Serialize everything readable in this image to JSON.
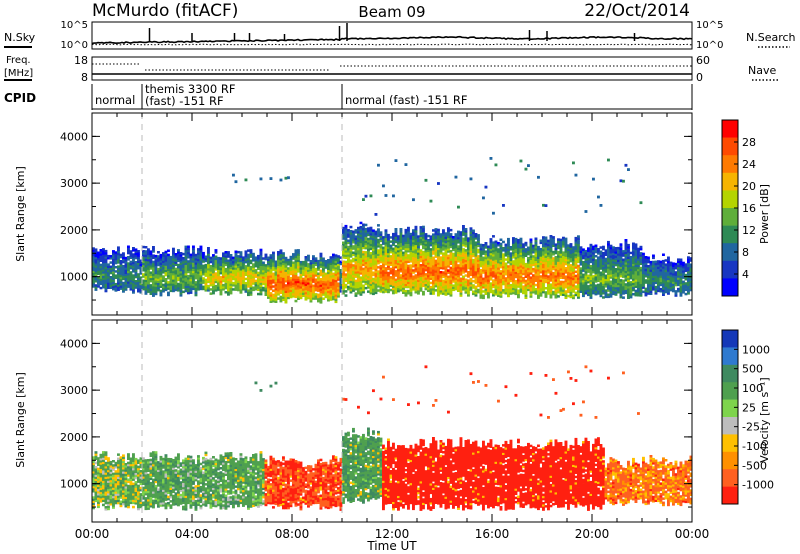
{
  "header": {
    "site": "McMurdo (fitACF)",
    "beam": "Beam 09",
    "date": "22/Oct/2014"
  },
  "noise_panel": {
    "left_label": "N.Sky",
    "right_label": "N.Search",
    "left_ticks": [
      "10^5",
      "10^0"
    ],
    "right_ticks": [
      "10^5",
      "10^0"
    ]
  },
  "freq_panel": {
    "left_label_1": "Freq.",
    "left_label_2": "[MHz]",
    "left_ticks": [
      "18",
      "8"
    ],
    "right_label": "Nave",
    "right_ticks": [
      "60",
      "0"
    ]
  },
  "cpid": {
    "label": "CPID",
    "segments": [
      {
        "start": 0,
        "end": 2,
        "lines": [
          "normal"
        ]
      },
      {
        "start": 2,
        "end": 10,
        "lines": [
          "themis 3300 RF",
          "(fast) -151 RF"
        ]
      },
      {
        "start": 10,
        "end": 24,
        "lines": [
          "normal (fast) -151 RF"
        ]
      }
    ]
  },
  "power_colorbar": {
    "label": "Power [dB]",
    "ticks": [
      "28",
      "24",
      "20",
      "16",
      "12",
      "8",
      "4"
    ],
    "colors": [
      "#ff0000",
      "#ff4a00",
      "#ff7a00",
      "#f6b400",
      "#b4d400",
      "#5fae3a",
      "#2e8a55",
      "#2066a0",
      "#1736c2",
      "#0000ff"
    ]
  },
  "velocity_colorbar": {
    "label": "Velocity [m s⁻¹]",
    "ticks": [
      "1000",
      "500",
      "100",
      "25",
      "-25",
      "-100",
      "-500",
      "-1000"
    ],
    "colors": [
      "#1438b8",
      "#2f7ad0",
      "#3f8a60",
      "#4fa04f",
      "#7ed44c",
      "#bdbdbd",
      "#ffc000",
      "#ff9000",
      "#ff6020",
      "#ff2010"
    ]
  },
  "x_axis": {
    "label": "Time UT",
    "ticks": [
      "00:00",
      "04:00",
      "08:00",
      "12:00",
      "16:00",
      "20:00",
      "00:00"
    ]
  },
  "chart_data": [
    {
      "type": "heatmap",
      "title": "Power",
      "xlabel": "Time UT",
      "ylabel": "Slant Range [km]",
      "ylim": [
        180,
        4500
      ],
      "yticks": [
        "1000",
        "2000",
        "3000",
        "4000"
      ],
      "xlim_hours": [
        0,
        24
      ],
      "zlabel": "Power [dB]",
      "zlim": [
        0,
        30
      ],
      "bands": [
        {
          "t0": 0.0,
          "t1": 1.9,
          "r_low": 700,
          "r_high": 1500,
          "core": 10
        },
        {
          "t0": 2.0,
          "t1": 4.5,
          "r_low": 650,
          "r_high": 1500,
          "core": 14
        },
        {
          "t0": 4.5,
          "t1": 7.0,
          "r_low": 650,
          "r_high": 1450,
          "core": 20
        },
        {
          "t0": 7.0,
          "t1": 9.9,
          "r_low": 500,
          "r_high": 1400,
          "core": 27
        },
        {
          "t0": 10.0,
          "t1": 11.5,
          "r_low": 650,
          "r_high": 2000,
          "core": 22
        },
        {
          "t0": 11.5,
          "t1": 15.5,
          "r_low": 650,
          "r_high": 1900,
          "core": 26
        },
        {
          "t0": 15.5,
          "t1": 19.5,
          "r_low": 600,
          "r_high": 1700,
          "core": 25
        },
        {
          "t0": 19.5,
          "t1": 22.0,
          "r_low": 600,
          "r_high": 1600,
          "core": 14
        },
        {
          "t0": 22.0,
          "t1": 24.0,
          "r_low": 650,
          "r_high": 1300,
          "core": 10
        }
      ]
    },
    {
      "type": "heatmap",
      "title": "Velocity",
      "xlabel": "Time UT",
      "ylabel": "Slant Range [km]",
      "ylim": [
        180,
        4500
      ],
      "yticks": [
        "1000",
        "2000",
        "3000",
        "4000"
      ],
      "xlim_hours": [
        0,
        24
      ],
      "zlabel": "Velocity [m s⁻¹]",
      "zlim": [
        -1000,
        1000
      ],
      "bands": [
        {
          "t0": 0.0,
          "t1": 2.0,
          "r_low": 500,
          "r_high": 1500,
          "velocity": 150
        },
        {
          "t0": 2.0,
          "t1": 6.9,
          "r_low": 500,
          "r_high": 1500,
          "velocity": 200
        },
        {
          "t0": 6.9,
          "t1": 10.0,
          "r_low": 500,
          "r_high": 1400,
          "velocity": -300
        },
        {
          "t0": 10.0,
          "t1": 11.6,
          "r_low": 650,
          "r_high": 2000,
          "velocity": 250
        },
        {
          "t0": 11.6,
          "t1": 20.5,
          "r_low": 500,
          "r_high": 1800,
          "velocity": -600
        },
        {
          "t0": 20.5,
          "t1": 24.0,
          "r_low": 600,
          "r_high": 1400,
          "velocity": -150
        }
      ]
    }
  ]
}
